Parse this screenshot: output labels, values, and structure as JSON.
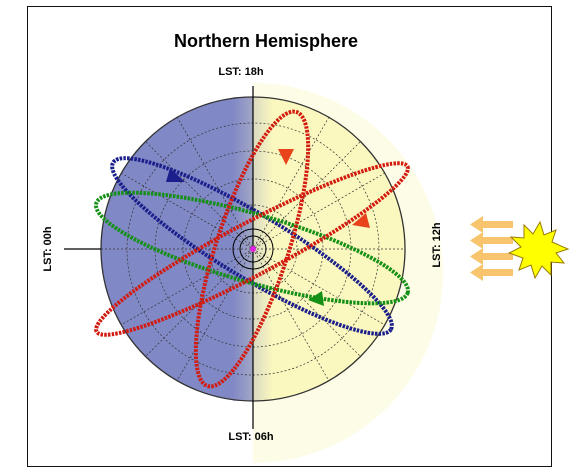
{
  "title": "Northern Hemisphere",
  "labels": {
    "top": "LST: 18h",
    "left": "LST: 00h",
    "right": "LST: 12h",
    "bottom": "LST: 06h"
  },
  "colors": {
    "night": "#8188c6",
    "day": "#fbf8bf",
    "orbit_blue": "#1a1f8c",
    "orbit_green": "#149016",
    "orbit_red": "#d31b0f",
    "sun": "#ffff00",
    "sun_rays": "#f8c56e",
    "pole_marker": "#e020e0"
  },
  "icons": {
    "sun": "sun-icon",
    "rays": "sun-ray-arrows"
  }
}
